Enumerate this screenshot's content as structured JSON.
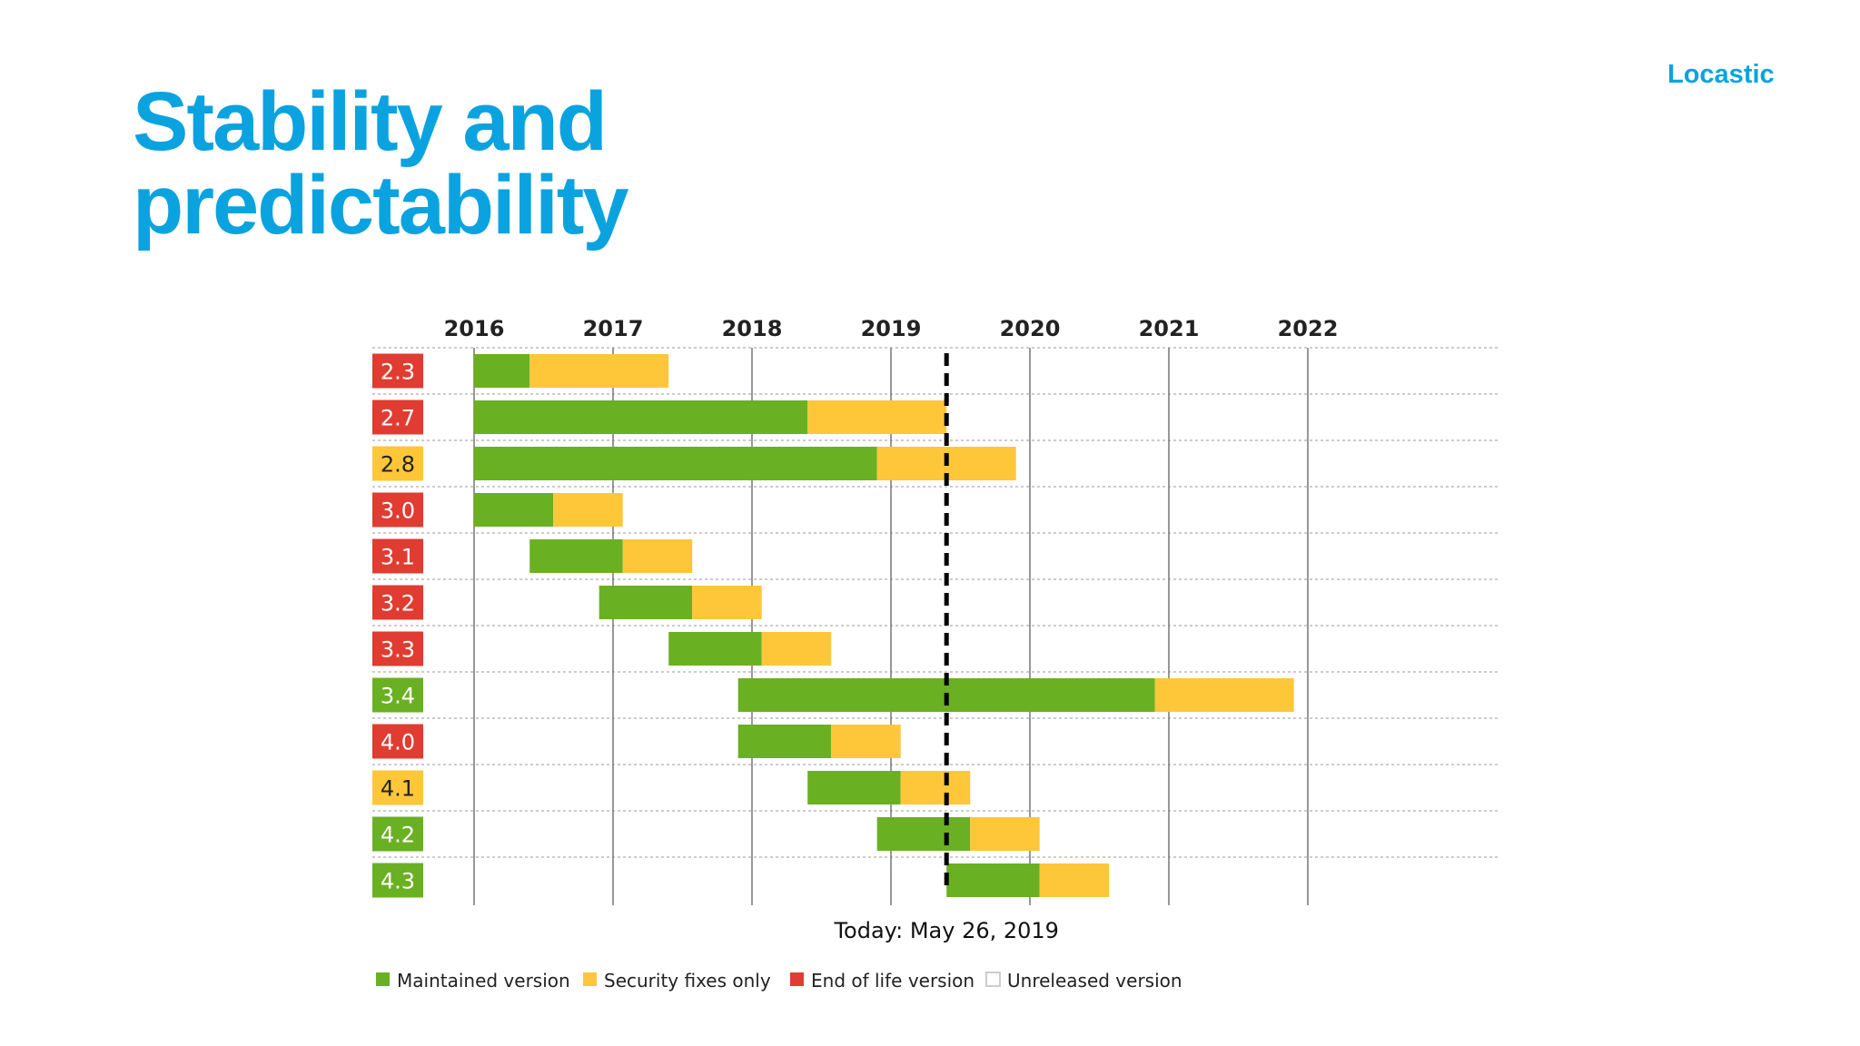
{
  "slide": {
    "title_line1": "Stability and",
    "title_line2": "predictability",
    "brand": "Locastic"
  },
  "chart_data": {
    "type": "bar",
    "subtype": "gantt",
    "x_ticks": [
      "2016",
      "2017",
      "2018",
      "2019",
      "2020",
      "2021",
      "2022"
    ],
    "xlim": [
      2016,
      2023.1
    ],
    "grid": true,
    "today": {
      "label": "Today: May 26, 2019",
      "value": 2019.4
    },
    "colors": {
      "maintained": "#6ab023",
      "security": "#fec639",
      "eol": "#e03c31",
      "unreleased": "#ffffff"
    },
    "rows": [
      {
        "version": "2.3",
        "status": "eol",
        "maintained": [
          2016.0,
          2016.4
        ],
        "security": [
          2016.4,
          2017.4
        ]
      },
      {
        "version": "2.7",
        "status": "eol",
        "maintained": [
          2016.0,
          2018.4
        ],
        "security": [
          2018.4,
          2019.4
        ]
      },
      {
        "version": "2.8",
        "status": "security",
        "maintained": [
          2016.0,
          2018.9
        ],
        "security": [
          2018.9,
          2019.9
        ]
      },
      {
        "version": "3.0",
        "status": "eol",
        "maintained": [
          2016.0,
          2016.57
        ],
        "security": [
          2016.57,
          2017.07
        ]
      },
      {
        "version": "3.1",
        "status": "eol",
        "maintained": [
          2016.4,
          2017.07
        ],
        "security": [
          2017.07,
          2017.57
        ]
      },
      {
        "version": "3.2",
        "status": "eol",
        "maintained": [
          2016.9,
          2017.57
        ],
        "security": [
          2017.57,
          2018.07
        ]
      },
      {
        "version": "3.3",
        "status": "eol",
        "maintained": [
          2017.4,
          2018.07
        ],
        "security": [
          2018.07,
          2018.57
        ]
      },
      {
        "version": "3.4",
        "status": "maintained",
        "maintained": [
          2017.9,
          2020.9
        ],
        "security": [
          2020.9,
          2021.9
        ]
      },
      {
        "version": "4.0",
        "status": "eol",
        "maintained": [
          2017.9,
          2018.57
        ],
        "security": [
          2018.57,
          2019.07
        ]
      },
      {
        "version": "4.1",
        "status": "security",
        "maintained": [
          2018.4,
          2019.07
        ],
        "security": [
          2019.07,
          2019.57
        ]
      },
      {
        "version": "4.2",
        "status": "maintained",
        "maintained": [
          2018.9,
          2019.57
        ],
        "security": [
          2019.57,
          2020.07
        ]
      },
      {
        "version": "4.3",
        "status": "maintained",
        "maintained": [
          2019.4,
          2020.07
        ],
        "security": [
          2020.07,
          2020.57
        ]
      }
    ],
    "legend": [
      {
        "key": "maintained",
        "label": "Maintained version"
      },
      {
        "key": "security",
        "label": "Security fixes only"
      },
      {
        "key": "eol",
        "label": "End of life version"
      },
      {
        "key": "unreleased",
        "label": "Unreleased version"
      }
    ],
    "legend_position": "bottom-left"
  }
}
